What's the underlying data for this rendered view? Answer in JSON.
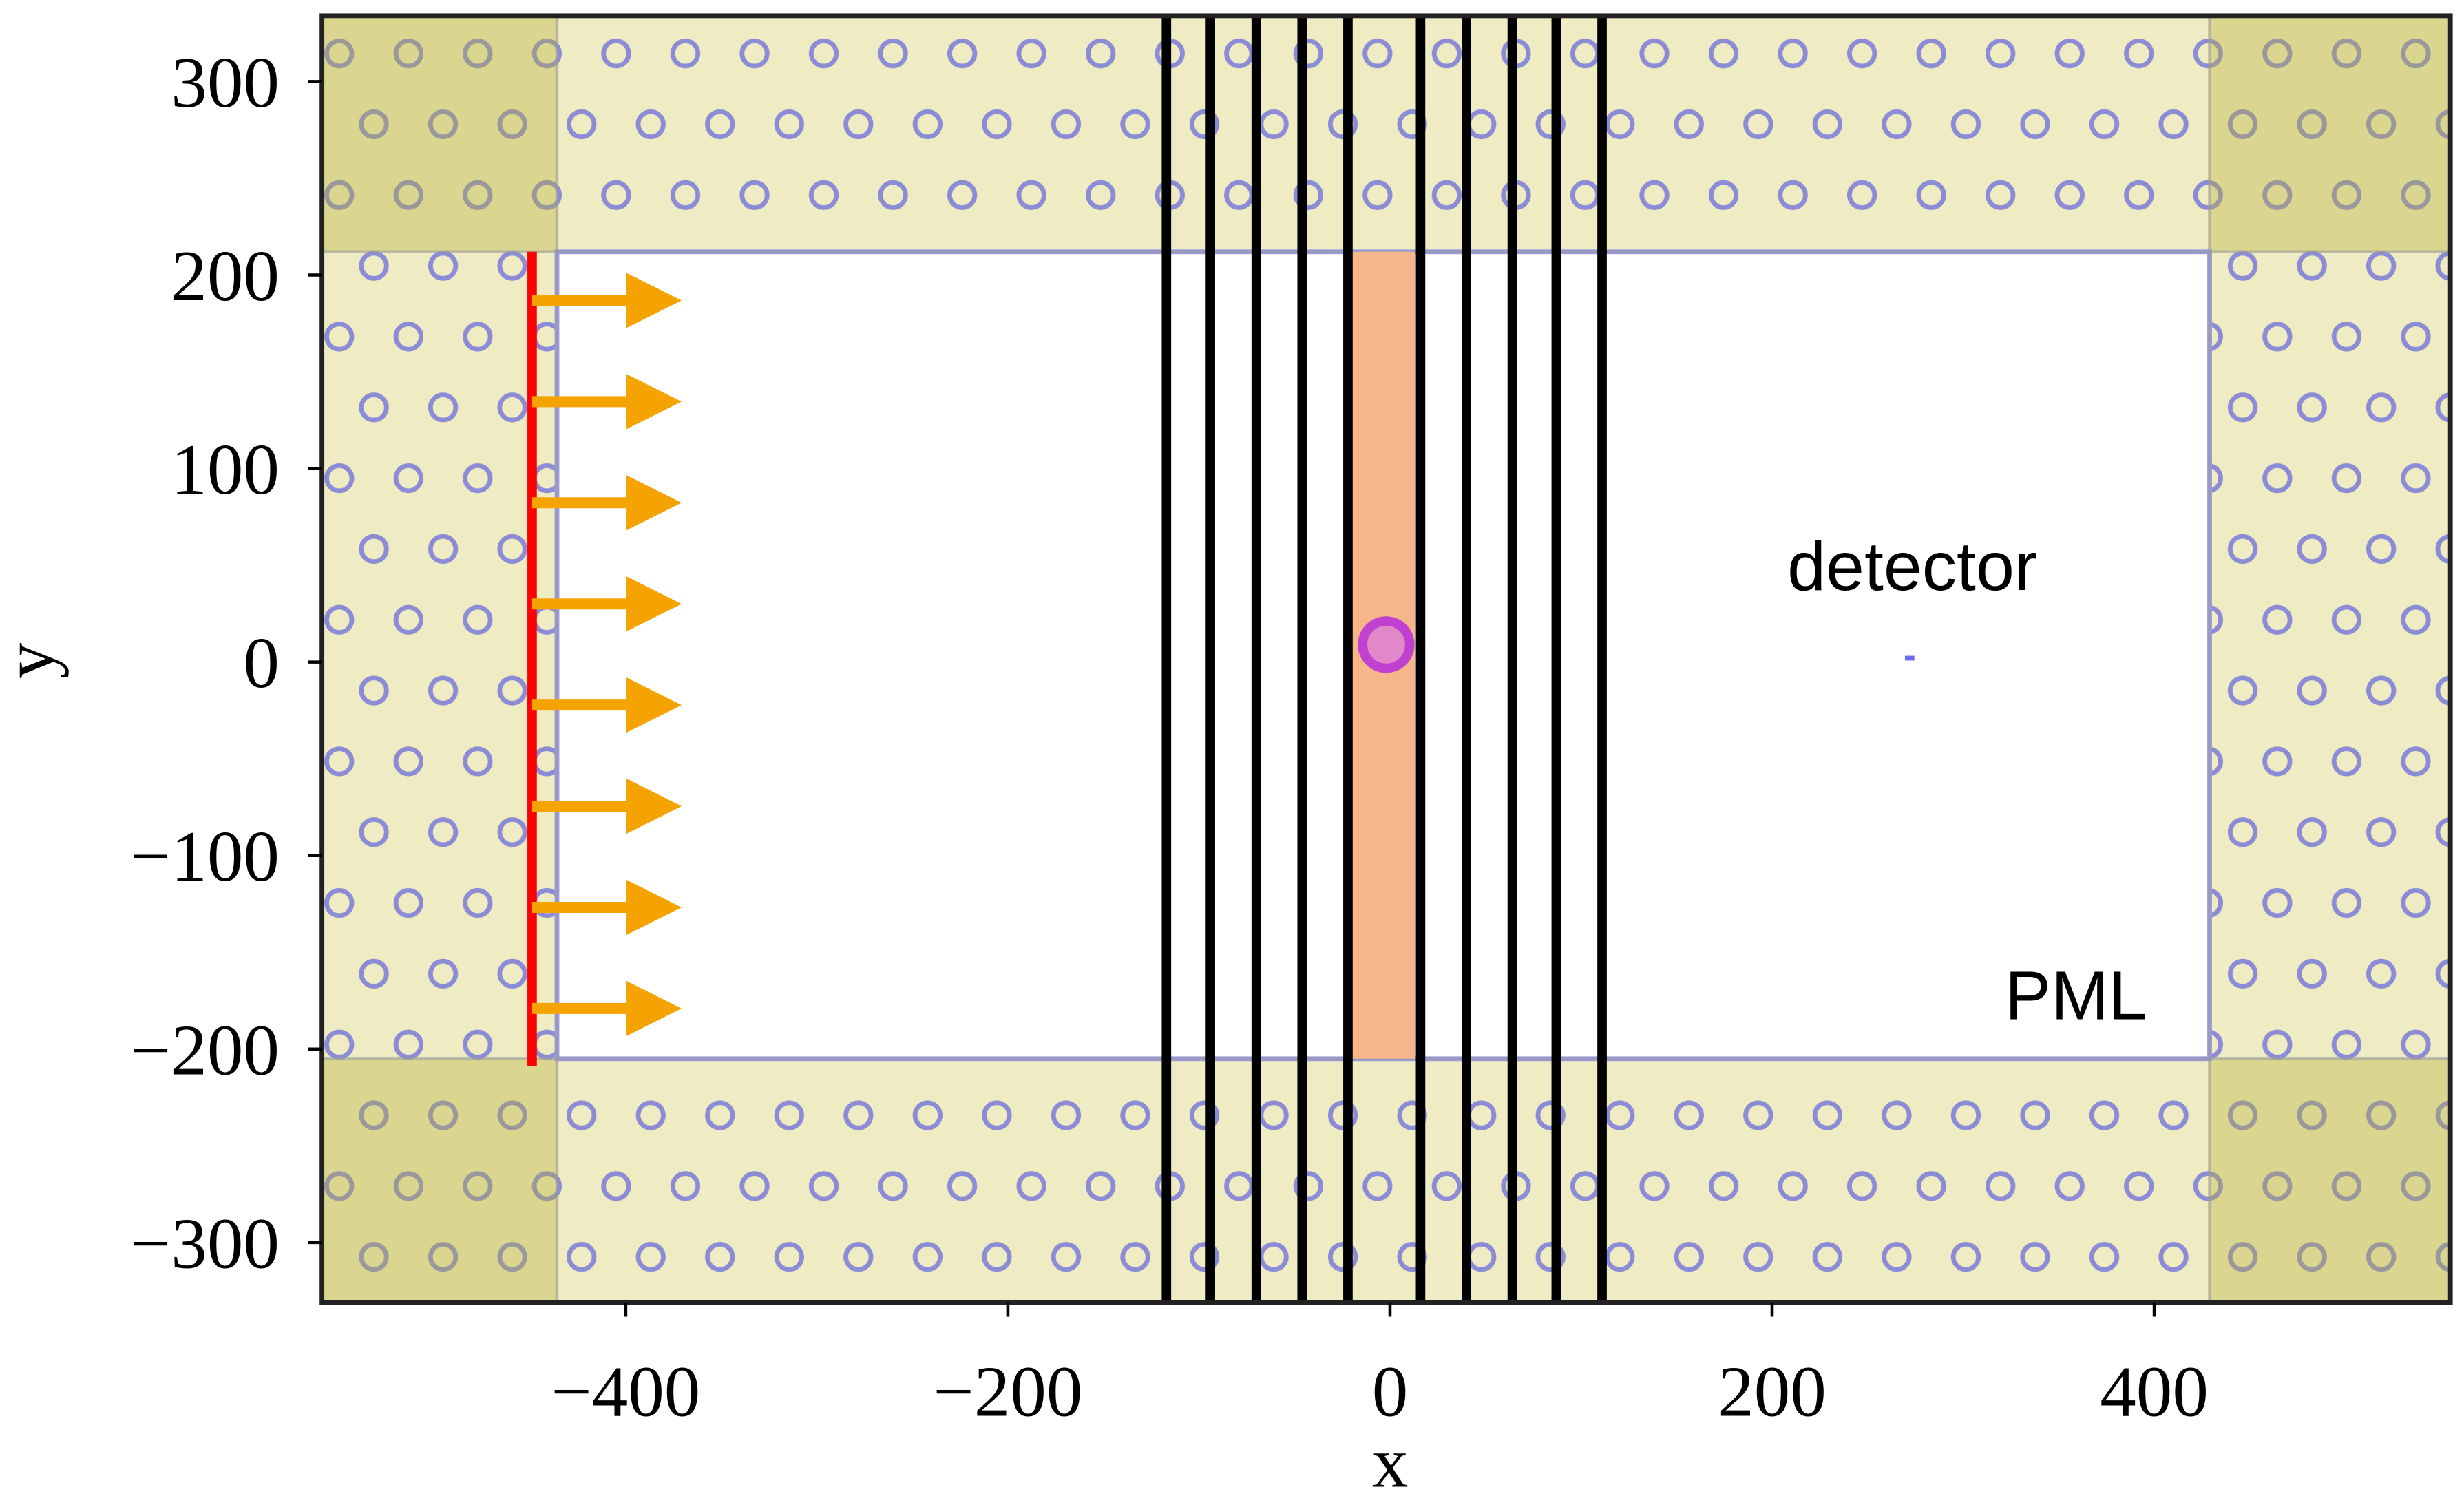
{
  "chart_data": {
    "type": "simulation",
    "x_label": "x",
    "y_label": "y",
    "xlim": [
      -559,
      555
    ],
    "ylim": [
      -331,
      334
    ],
    "xticks": [
      {
        "value": -400,
        "label": "−400"
      },
      {
        "value": -200,
        "label": "−200"
      },
      0,
      200,
      400
    ],
    "yticks": [
      {
        "value": -300,
        "label": "−300"
      },
      {
        "value": -200,
        "label": "−200"
      },
      {
        "value": -100,
        "label": "−100"
      },
      0,
      100,
      200,
      300
    ],
    "pml": {
      "label": "PML",
      "x": [
        -436,
        429
      ],
      "y": [
        -205,
        212
      ]
    },
    "source": {
      "x": -449,
      "y": [
        -209,
        212
      ],
      "color": "#ff0000"
    },
    "layers": {
      "x": [
        -117,
        -94,
        -70,
        -46,
        -22,
        16,
        40,
        64,
        87,
        111
      ],
      "color": "#000000"
    },
    "slab": {
      "x": [
        -20,
        13
      ],
      "color": "#f7b58a"
    },
    "emitter": {
      "x": -2,
      "y": 9,
      "color": "#c040d0"
    },
    "detector": {
      "label": "detector",
      "x": 272,
      "y": 2,
      "color": "#6a6af0"
    }
  }
}
